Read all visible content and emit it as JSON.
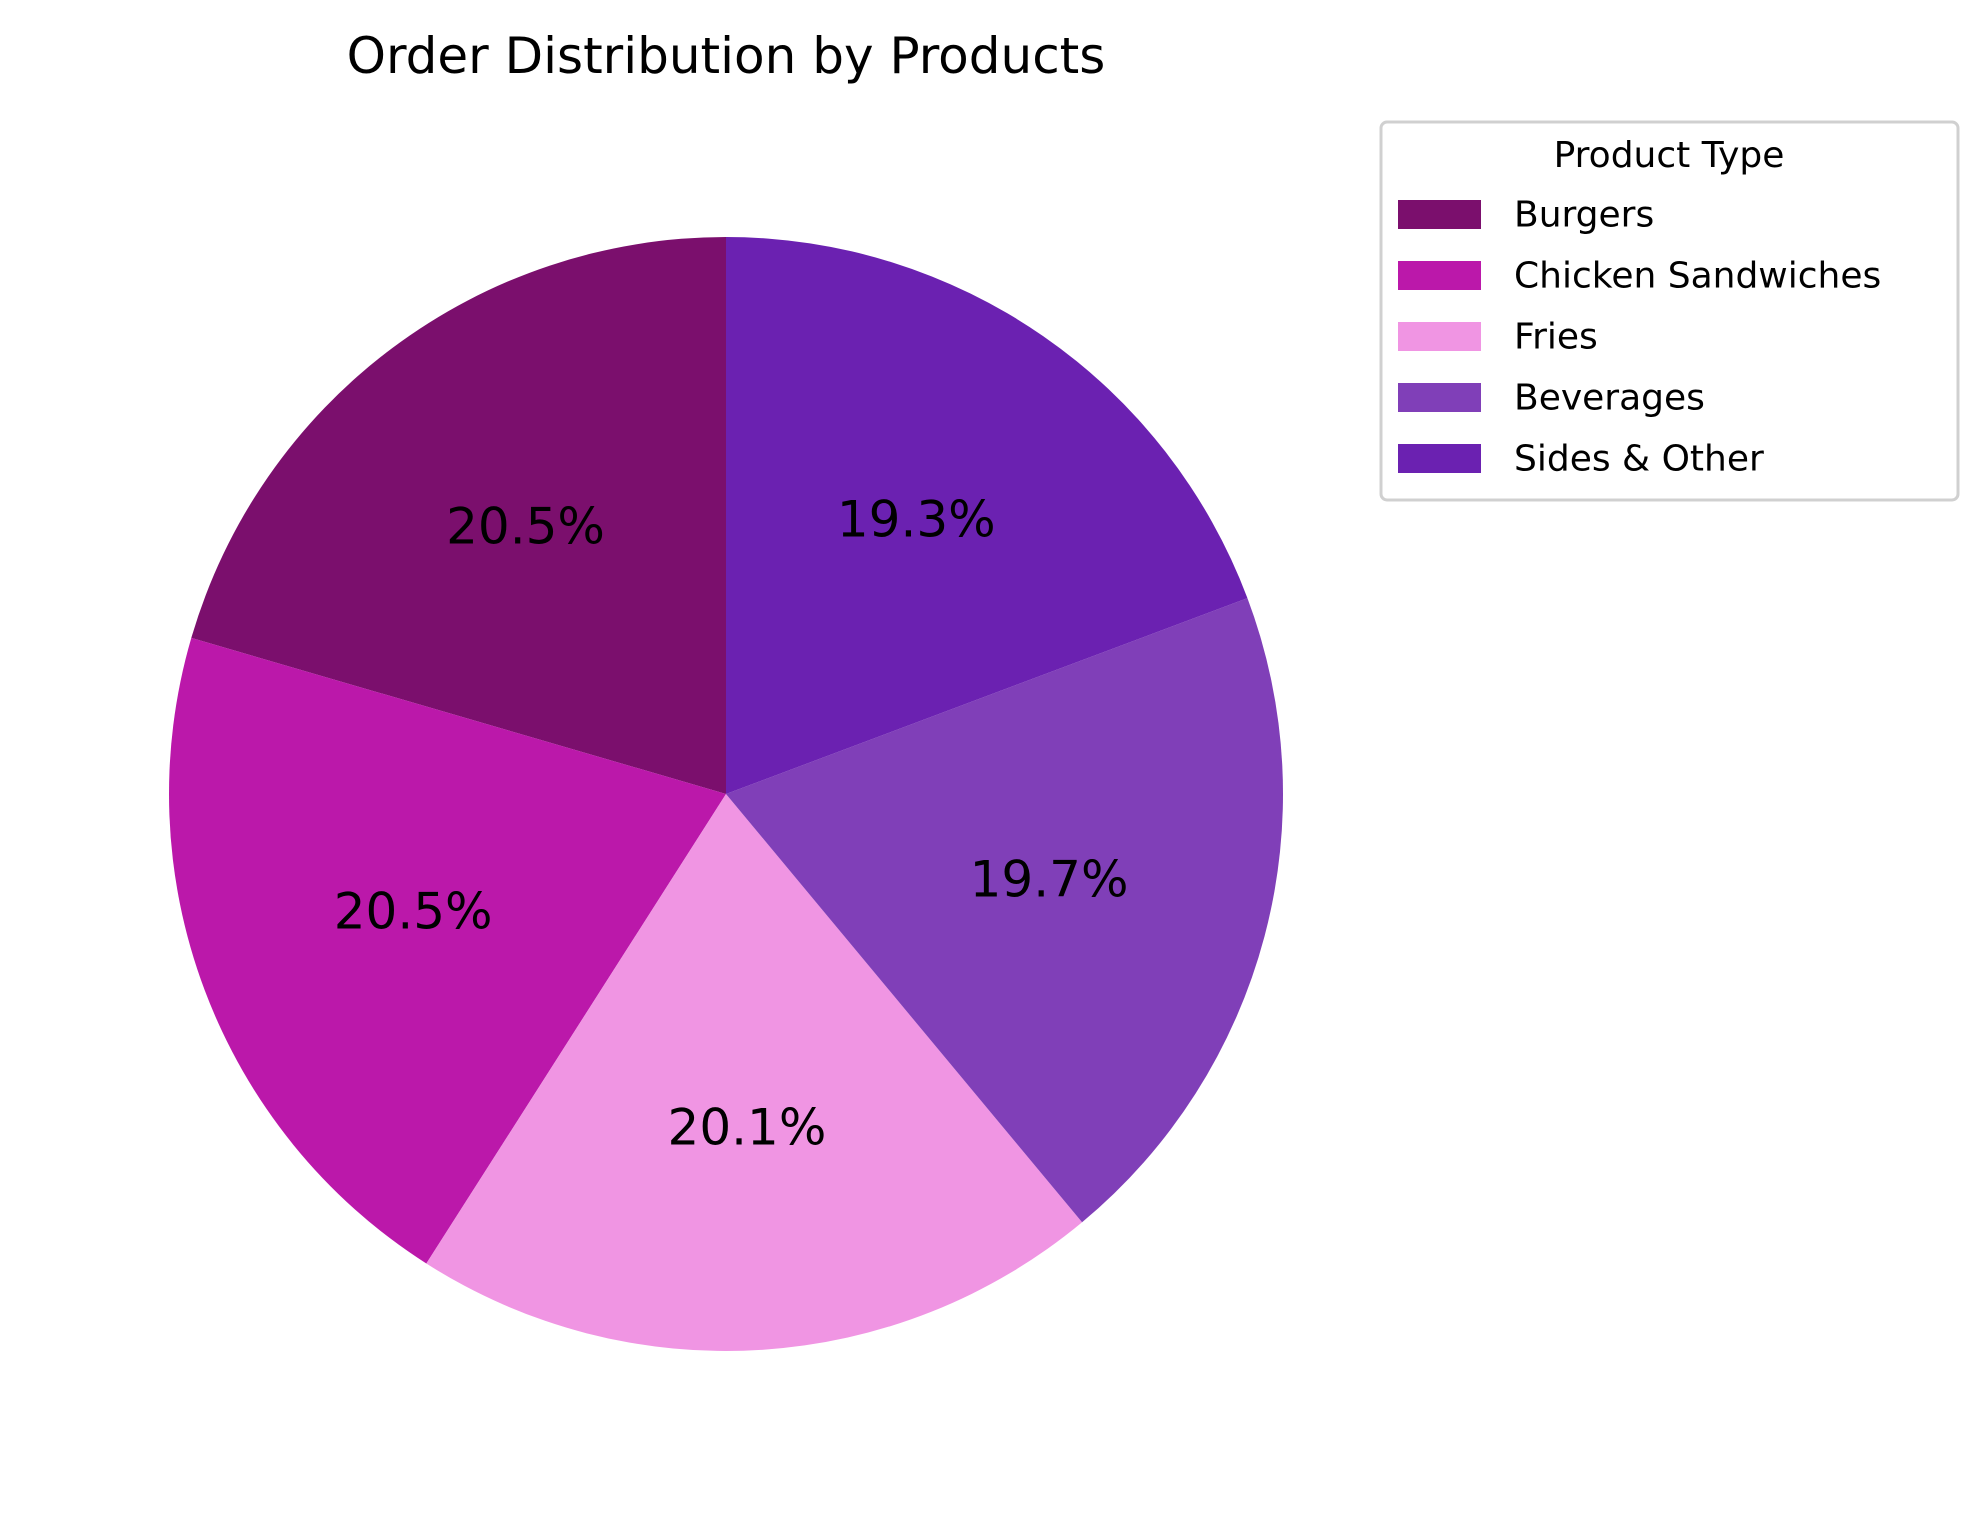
{
  "chart_data": {
    "type": "pie",
    "title": "Order Distribution by Products",
    "categories": [
      "Burgers",
      "Chicken Sandwiches",
      "Fries",
      "Beverages",
      "Sides & Other"
    ],
    "values": [
      20.5,
      20.5,
      20.1,
      19.7,
      19.3
    ],
    "value_labels": [
      "20.5%",
      "20.5%",
      "20.1%",
      "19.7%",
      "19.3%"
    ],
    "colors": [
      "#7b0f6d",
      "#bb18aa",
      "#f095e3",
      "#803fb8",
      "#6b21b1"
    ],
    "start_angle_deg": 90,
    "direction": "counterclockwise",
    "legend": {
      "title": "Product Type",
      "placement": "upper-right-outside"
    }
  }
}
